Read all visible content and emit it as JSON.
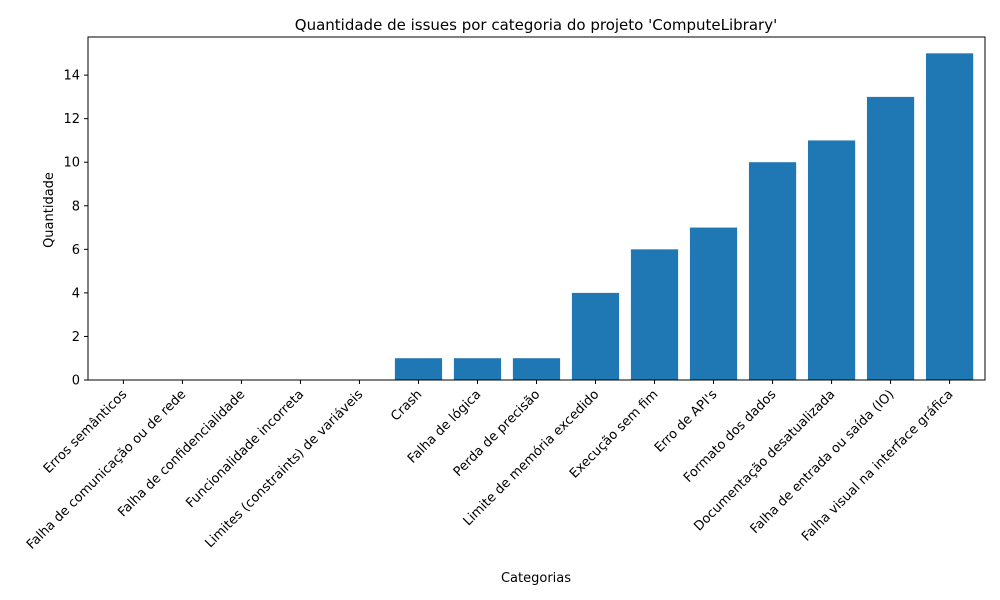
{
  "chart_data": {
    "type": "bar",
    "title": "Quantidade de issues por categoria do projeto 'ComputeLibrary'",
    "xlabel": "Categorias",
    "ylabel": "Quantidade",
    "categories": [
      "Erros semânticos",
      "Falha de comunicação ou de rede",
      "Falha de confidencialidade",
      "Funcionalidade incorreta",
      "Limites (constraints) de variáveis",
      "Crash",
      "Falha de lógica",
      "Perda de precisão",
      "Limite de memória excedido",
      "Execução sem fim",
      "Erro de API's",
      "Formato dos dados",
      "Documentação desatualizada",
      "Falha de entrada ou saída (IO)",
      "Falha visual na interface gráfica"
    ],
    "values": [
      0,
      0,
      0,
      0,
      0,
      1,
      1,
      1,
      4,
      6,
      7,
      10,
      11,
      13,
      15
    ],
    "ylim": [
      0,
      15.75
    ],
    "yticks": [
      0,
      2,
      4,
      6,
      8,
      10,
      12,
      14
    ],
    "bar_color": "#1f77b4",
    "grid": false,
    "legend": "none"
  }
}
